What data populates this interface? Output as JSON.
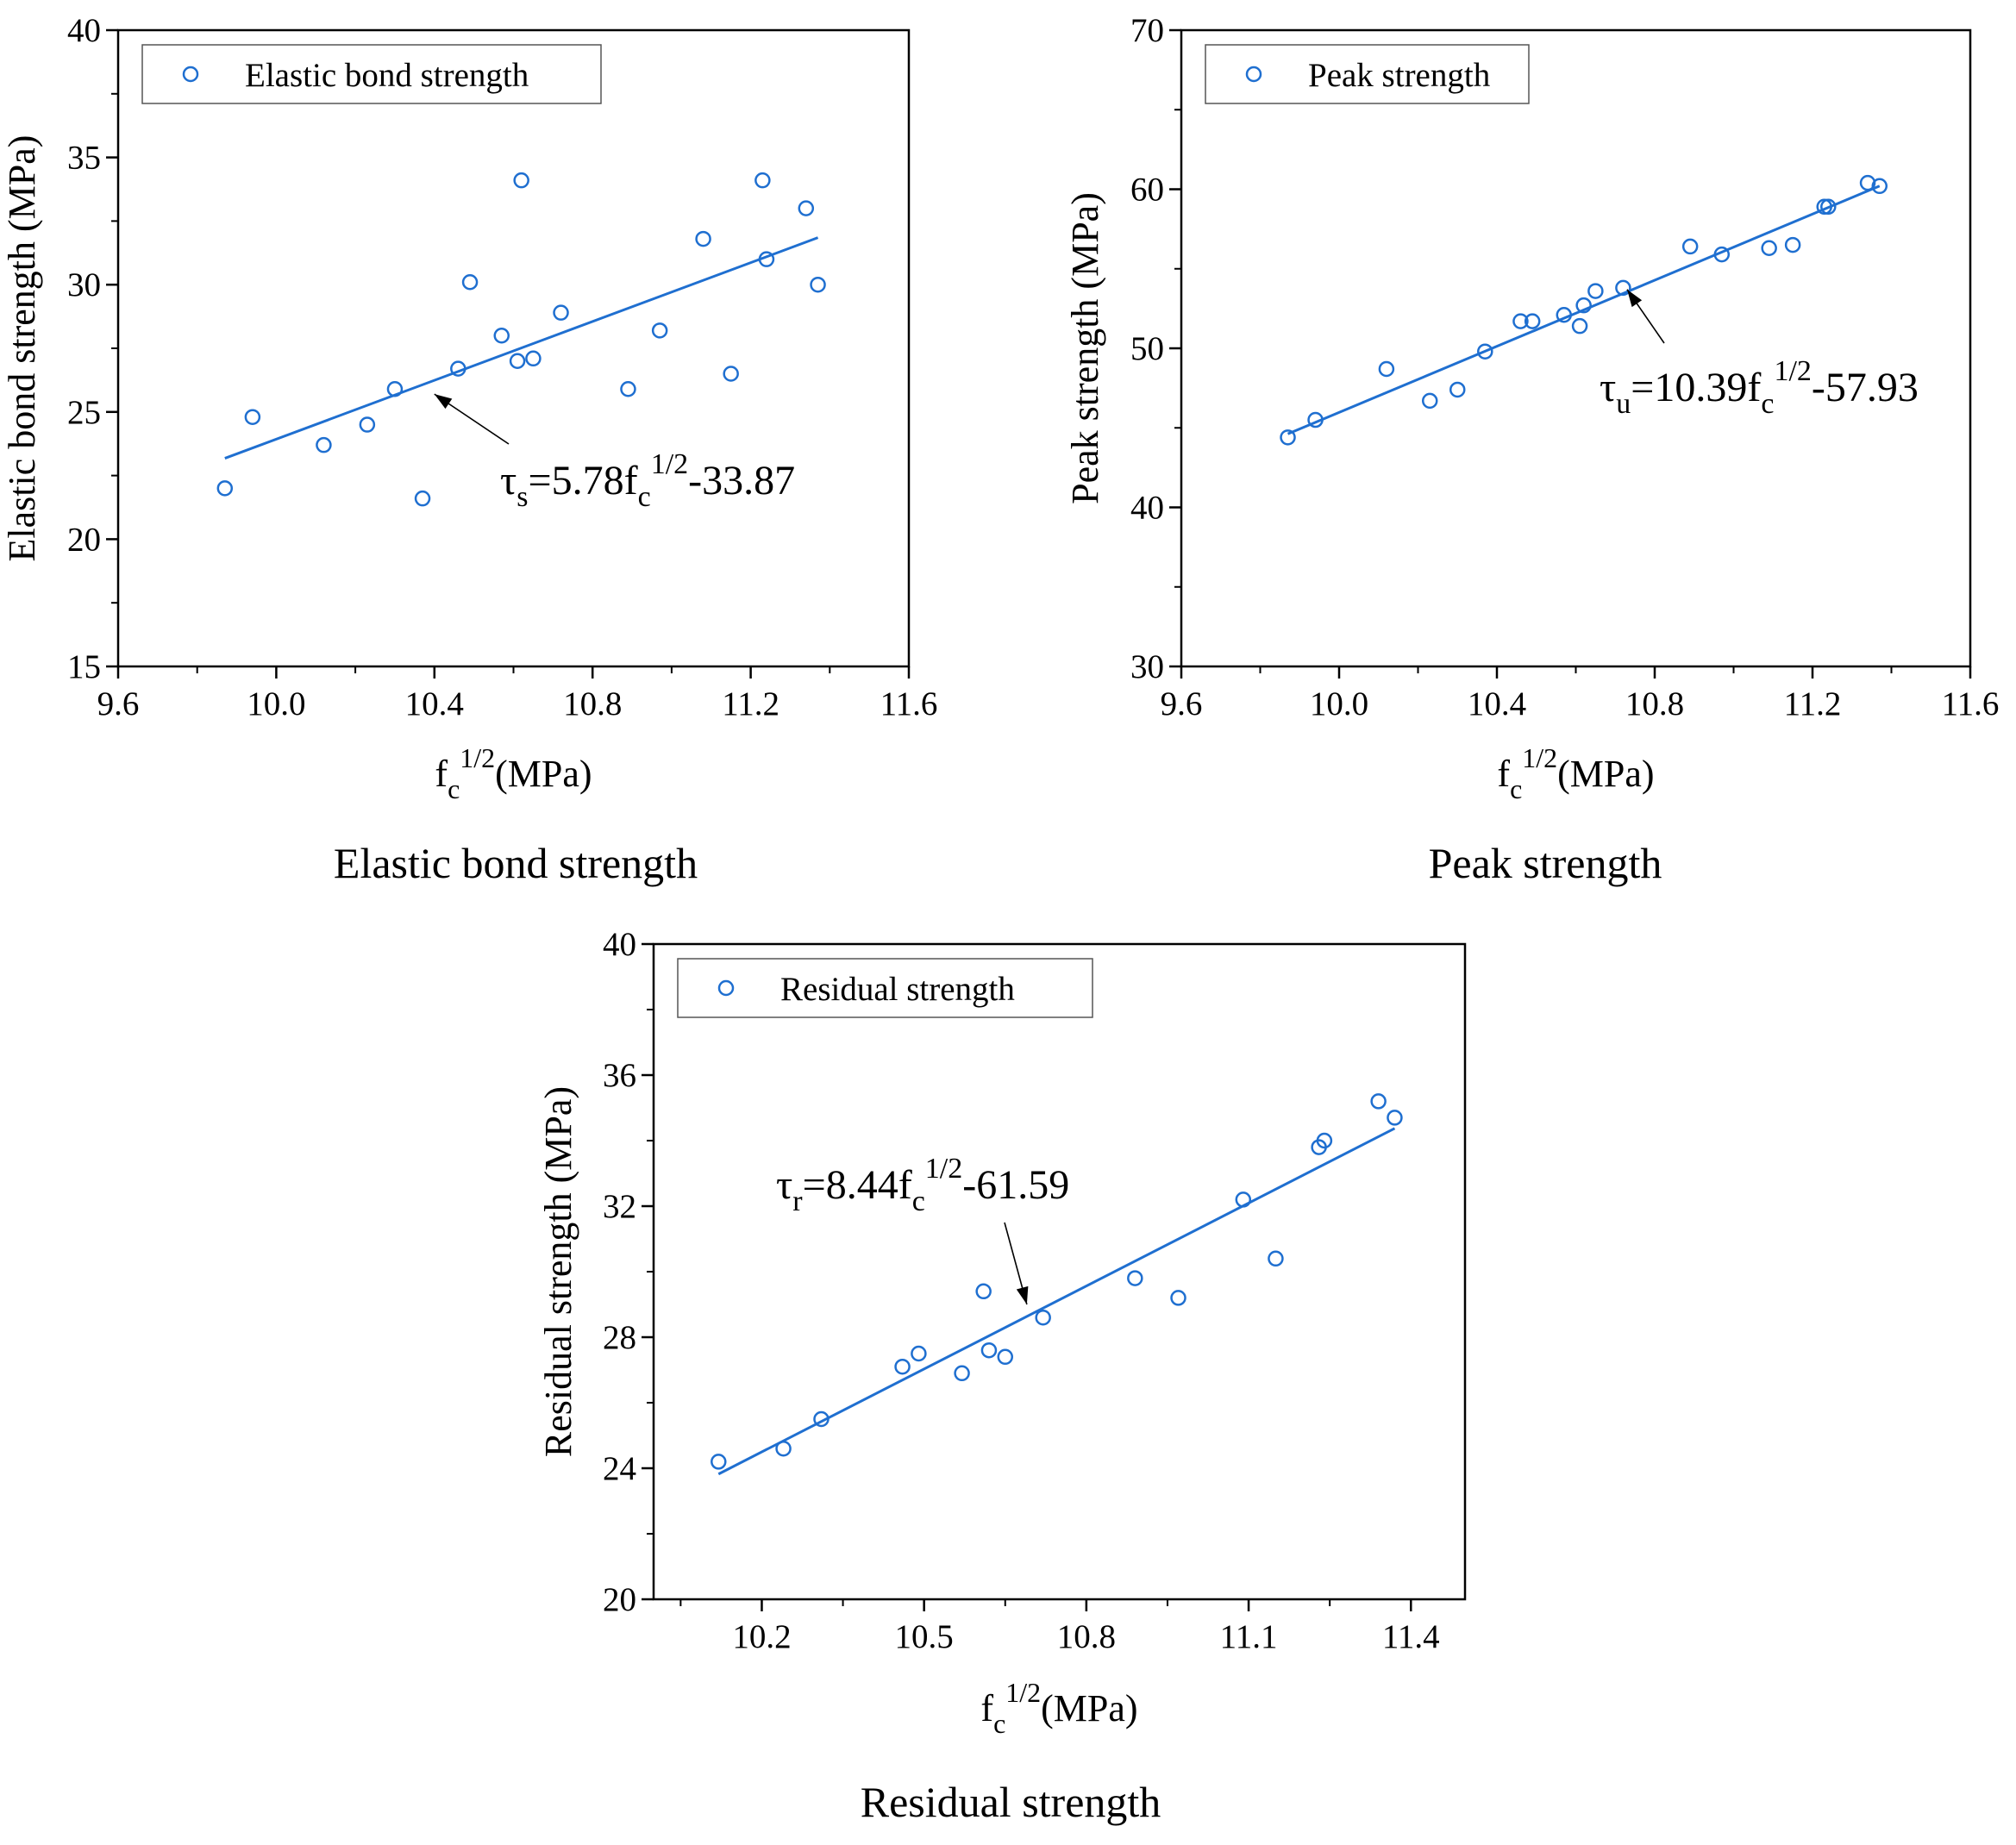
{
  "colors": {
    "series": "#1f6fd0",
    "axis": "#000000",
    "background": "#ffffff"
  },
  "chart_data": [
    {
      "id": "elastic",
      "type": "scatter",
      "caption": "Elastic bond strength",
      "legend": {
        "label": "Elastic bond strength",
        "placement": "top-left"
      },
      "xlabel": {
        "base": "f",
        "sub": "c",
        "sup": "1/2",
        "rest": "(MPa)"
      },
      "ylabel": "Elastic bond strength (MPa)",
      "xlim": [
        9.6,
        11.6
      ],
      "ylim": [
        15,
        40
      ],
      "xticks": [
        9.6,
        10.0,
        10.4,
        10.8,
        11.2,
        11.6
      ],
      "xtick_labels": [
        "9.6",
        "10.0",
        "10.4",
        "10.8",
        "11.2",
        "11.6"
      ],
      "yticks": [
        15,
        20,
        25,
        30,
        35,
        40
      ],
      "ytick_labels": [
        "15",
        "20",
        "25",
        "30",
        "35",
        "40"
      ],
      "points": [
        [
          9.87,
          22.0
        ],
        [
          9.94,
          24.8
        ],
        [
          10.12,
          23.7
        ],
        [
          10.23,
          24.5
        ],
        [
          10.3,
          25.9
        ],
        [
          10.37,
          21.6
        ],
        [
          10.46,
          26.7
        ],
        [
          10.49,
          30.1
        ],
        [
          10.57,
          28.0
        ],
        [
          10.61,
          27.0
        ],
        [
          10.62,
          34.1
        ],
        [
          10.65,
          27.1
        ],
        [
          10.72,
          28.9
        ],
        [
          10.89,
          25.9
        ],
        [
          10.97,
          28.2
        ],
        [
          11.08,
          31.8
        ],
        [
          11.15,
          26.5
        ],
        [
          11.23,
          34.1
        ],
        [
          11.24,
          31.0
        ],
        [
          11.34,
          33.0
        ],
        [
          11.37,
          30.0
        ]
      ],
      "fit": {
        "slope": 5.78,
        "intercept": -33.87,
        "x_range": [
          9.87,
          11.37
        ]
      },
      "equation": {
        "lhs": "τ",
        "lhs_sub": "s",
        "mid": "=5.78f",
        "mid_sub": "c",
        "sup": "1/2",
        "tail": "-33.87"
      },
      "annotation_target": [
        10.4,
        25.7
      ]
    },
    {
      "id": "peak",
      "type": "scatter",
      "caption": "Peak strength",
      "legend": {
        "label": "Peak strength",
        "placement": "top-left"
      },
      "xlabel": {
        "base": "f",
        "sub": "c",
        "sup": "1/2",
        "rest": "(MPa)"
      },
      "ylabel": "Peak strength (MPa)",
      "xlim": [
        9.6,
        11.6
      ],
      "ylim": [
        30,
        70
      ],
      "xticks": [
        9.6,
        10.0,
        10.4,
        10.8,
        11.2,
        11.6
      ],
      "xtick_labels": [
        "9.6",
        "10.0",
        "10.4",
        "10.8",
        "11.2",
        "11.6"
      ],
      "yticks": [
        30,
        40,
        50,
        60,
        70
      ],
      "ytick_labels": [
        "30",
        "40",
        "50",
        "60",
        "70"
      ],
      "points": [
        [
          9.87,
          44.4
        ],
        [
          9.94,
          45.5
        ],
        [
          10.12,
          48.7
        ],
        [
          10.23,
          46.7
        ],
        [
          10.3,
          47.4
        ],
        [
          10.37,
          49.8
        ],
        [
          10.46,
          51.7
        ],
        [
          10.49,
          51.7
        ],
        [
          10.57,
          52.1
        ],
        [
          10.61,
          51.4
        ],
        [
          10.62,
          52.7
        ],
        [
          10.65,
          53.6
        ],
        [
          10.72,
          53.8
        ],
        [
          10.89,
          56.4
        ],
        [
          10.97,
          55.9
        ],
        [
          11.09,
          56.3
        ],
        [
          11.15,
          56.5
        ],
        [
          11.23,
          58.9
        ],
        [
          11.24,
          58.9
        ],
        [
          11.34,
          60.4
        ],
        [
          11.37,
          60.2
        ]
      ],
      "fit": {
        "slope": 10.39,
        "intercept": -57.93,
        "x_range": [
          9.87,
          11.37
        ]
      },
      "equation": {
        "lhs": "τ",
        "lhs_sub": "u",
        "mid": "=10.39f",
        "mid_sub": "c",
        "sup": "1/2",
        "tail": "-57.93"
      },
      "annotation_target": [
        10.73,
        53.7
      ]
    },
    {
      "id": "residual",
      "type": "scatter",
      "caption": "Residual strength",
      "legend": {
        "label": "Residual strength",
        "placement": "top-left"
      },
      "xlabel": {
        "base": "f",
        "sub": "c",
        "sup": "1/2",
        "rest": "(MPa)"
      },
      "ylabel": "Residual strength (MPa)",
      "xlim": [
        10.0,
        11.5
      ],
      "ylim": [
        20,
        40
      ],
      "xticks": [
        10.2,
        10.5,
        10.8,
        11.1,
        11.4
      ],
      "xtick_labels": [
        "10.2",
        "10.5",
        "10.8",
        "11.1",
        "11.4"
      ],
      "yticks": [
        20,
        24,
        28,
        32,
        36,
        40
      ],
      "ytick_labels": [
        "20",
        "24",
        "28",
        "32",
        "36",
        "40"
      ],
      "points": [
        [
          10.12,
          24.2
        ],
        [
          10.24,
          24.6
        ],
        [
          10.31,
          25.5
        ],
        [
          10.46,
          27.1
        ],
        [
          10.49,
          27.5
        ],
        [
          10.57,
          26.9
        ],
        [
          10.61,
          29.4
        ],
        [
          10.62,
          27.6
        ],
        [
          10.65,
          27.4
        ],
        [
          10.72,
          28.6
        ],
        [
          10.89,
          29.8
        ],
        [
          10.97,
          29.2
        ],
        [
          11.09,
          32.2
        ],
        [
          11.15,
          30.4
        ],
        [
          11.23,
          33.8
        ],
        [
          11.24,
          34.0
        ],
        [
          11.34,
          35.2
        ],
        [
          11.37,
          34.7
        ]
      ],
      "fit": {
        "slope": 8.44,
        "intercept": -61.59,
        "x_range": [
          10.12,
          11.37
        ]
      },
      "equation": {
        "lhs": "τ",
        "lhs_sub": "r",
        "mid": "=8.44f",
        "mid_sub": "c",
        "sup": "1/2",
        "tail": "-61.59"
      },
      "annotation_target": [
        10.69,
        29.0
      ]
    }
  ]
}
